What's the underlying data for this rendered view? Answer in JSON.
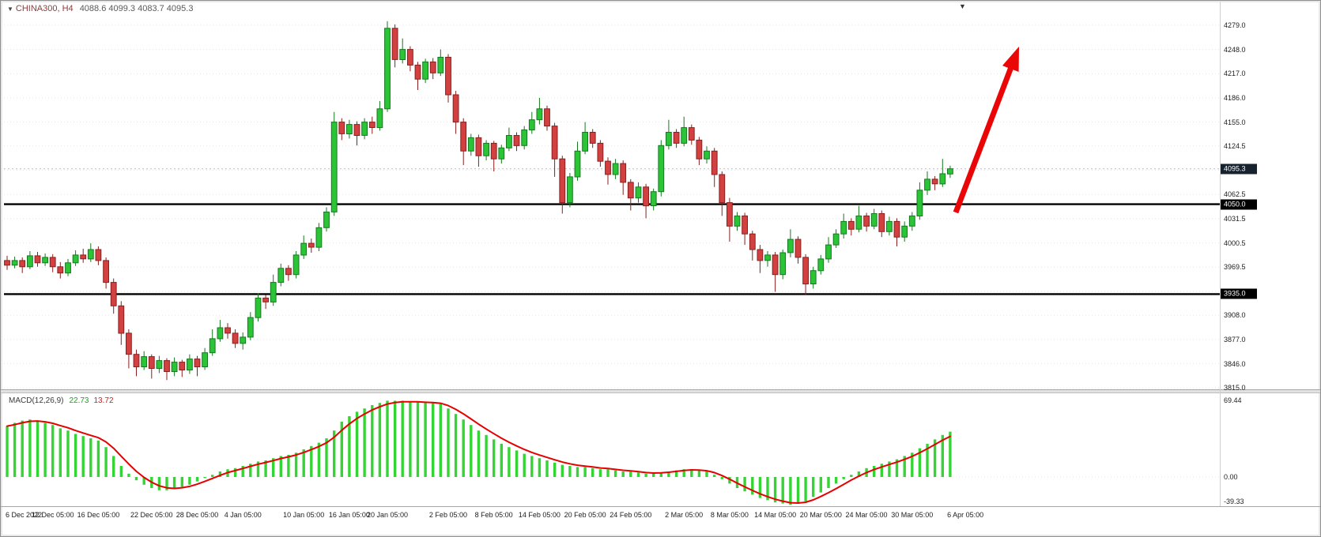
{
  "window": {
    "title_symbol": "CHINA300, H4",
    "title_ohlc": "4088.6 4099.3 4083.7 4095.3"
  },
  "colors": {
    "background": "#ffffff",
    "grid": "#dfe3ee",
    "candle_up_fill": "#2bc437",
    "candle_up_stroke": "#157a1f",
    "candle_down_fill": "#d24040",
    "candle_down_stroke": "#8a1f1f",
    "object_line": "#000000",
    "bid_line": "#b6bdd4",
    "bid_box": "#16222e",
    "hline_box": "#000000",
    "macd_histogram": "#35d435",
    "macd_signal": "#e60000",
    "arrow": "#ea0606"
  },
  "chart_data": {
    "type": "candlestick",
    "title": "CHINA300, H4",
    "symbol": "CHINA300",
    "timeframe": "H4",
    "last_ohlc": {
      "open": 4088.6,
      "high": 4099.3,
      "low": 4083.7,
      "close": 4095.3
    },
    "ylim_main": [
      3815.0,
      4292.0
    ],
    "grid": "horizontal-dotted",
    "price_axis": [
      {
        "value": 4279.0,
        "label": "4279.0",
        "show": true
      },
      {
        "value": 4248.0,
        "label": "4248.0",
        "show": true
      },
      {
        "value": 4217.0,
        "label": "4217.0",
        "show": true
      },
      {
        "value": 4186.0,
        "label": "4186.0",
        "show": true
      },
      {
        "value": 4155.0,
        "label": "4155.0",
        "show": true
      },
      {
        "value": 4124.5,
        "label": "4124.5",
        "show": true
      },
      {
        "value": 4093.5,
        "label": "4093.5",
        "show": false
      },
      {
        "value": 4062.5,
        "label": "4062.5",
        "show": true
      },
      {
        "value": 4031.5,
        "label": "4031.5",
        "show": true
      },
      {
        "value": 4000.5,
        "label": "4000.5",
        "show": true
      },
      {
        "value": 3969.5,
        "label": "3969.5",
        "show": true
      },
      {
        "value": 3938.5,
        "label": "3938.5",
        "show": false
      },
      {
        "value": 3908.0,
        "label": "3908.0",
        "show": true
      },
      {
        "value": 3877.0,
        "label": "3877.0",
        "show": true
      },
      {
        "value": 3846.0,
        "label": "3846.0",
        "show": true
      },
      {
        "value": 3815.0,
        "label": "3815.0",
        "show": true
      }
    ],
    "hlines": [
      {
        "price": 4050.0,
        "label": "4050.0"
      },
      {
        "price": 3935.0,
        "label": "3935.0"
      }
    ],
    "bid": {
      "price": 4095.3,
      "label": "4095.3"
    },
    "arrow": {
      "tail": [
        1204,
        250
      ],
      "tip": [
        1284,
        40
      ]
    },
    "time_ticks": [
      {
        "label": "6 Dec 2022",
        "i": 0
      },
      {
        "label": "12 Dec 05:00",
        "i": 6
      },
      {
        "label": "16 Dec 05:00",
        "i": 12
      },
      {
        "label": "22 Dec 05:00",
        "i": 19
      },
      {
        "label": "28 Dec 05:00",
        "i": 25
      },
      {
        "label": "4 Jan 05:00",
        "i": 31
      },
      {
        "label": "10 Jan 05:00",
        "i": 39
      },
      {
        "label": "16 Jan 05:00",
        "i": 45
      },
      {
        "label": "20 Jan 05:00",
        "i": 50
      },
      {
        "label": "2 Feb 05:00",
        "i": 58
      },
      {
        "label": "8 Feb 05:00",
        "i": 64
      },
      {
        "label": "14 Feb 05:00",
        "i": 70
      },
      {
        "label": "20 Feb 05:00",
        "i": 76
      },
      {
        "label": "24 Feb 05:00",
        "i": 82
      },
      {
        "label": "2 Mar 05:00",
        "i": 89
      },
      {
        "label": "8 Mar 05:00",
        "i": 95
      },
      {
        "label": "14 Mar 05:00",
        "i": 101
      },
      {
        "label": "20 Mar 05:00",
        "i": 107
      },
      {
        "label": "24 Mar 05:00",
        "i": 113
      },
      {
        "label": "30 Mar 05:00",
        "i": 119
      },
      {
        "label": "6 Apr 05:00",
        "i": 126
      }
    ],
    "ohlc": [
      [
        3978,
        3984,
        3966,
        3972
      ],
      [
        3972,
        3983,
        3968,
        3978
      ],
      [
        3978,
        3982,
        3962,
        3970
      ],
      [
        3970,
        3990,
        3967,
        3984
      ],
      [
        3984,
        3989,
        3970,
        3975
      ],
      [
        3975,
        3987,
        3971,
        3982
      ],
      [
        3982,
        3986,
        3963,
        3970
      ],
      [
        3970,
        3976,
        3955,
        3962
      ],
      [
        3962,
        3980,
        3958,
        3975
      ],
      [
        3975,
        3991,
        3971,
        3985
      ],
      [
        3985,
        3993,
        3975,
        3980
      ],
      [
        3980,
        4000,
        3976,
        3992
      ],
      [
        3992,
        3996,
        3972,
        3978
      ],
      [
        3978,
        3982,
        3942,
        3950
      ],
      [
        3950,
        3955,
        3910,
        3920
      ],
      [
        3920,
        3926,
        3870,
        3885
      ],
      [
        3885,
        3890,
        3840,
        3858
      ],
      [
        3858,
        3864,
        3830,
        3842
      ],
      [
        3842,
        3862,
        3838,
        3855
      ],
      [
        3855,
        3858,
        3827,
        3840
      ],
      [
        3840,
        3856,
        3834,
        3850
      ],
      [
        3850,
        3853,
        3825,
        3836
      ],
      [
        3836,
        3854,
        3830,
        3848
      ],
      [
        3848,
        3851,
        3829,
        3838
      ],
      [
        3838,
        3858,
        3833,
        3852
      ],
      [
        3852,
        3856,
        3830,
        3842
      ],
      [
        3842,
        3866,
        3838,
        3860
      ],
      [
        3860,
        3890,
        3856,
        3878
      ],
      [
        3878,
        3902,
        3874,
        3892
      ],
      [
        3892,
        3898,
        3878,
        3885
      ],
      [
        3885,
        3890,
        3866,
        3872
      ],
      [
        3872,
        3886,
        3864,
        3880
      ],
      [
        3880,
        3912,
        3876,
        3905
      ],
      [
        3905,
        3936,
        3900,
        3930
      ],
      [
        3930,
        3934,
        3916,
        3925
      ],
      [
        3925,
        3960,
        3920,
        3950
      ],
      [
        3950,
        3974,
        3945,
        3968
      ],
      [
        3968,
        3972,
        3952,
        3960
      ],
      [
        3960,
        3990,
        3955,
        3985
      ],
      [
        3985,
        4010,
        3980,
        4000
      ],
      [
        4000,
        4006,
        3988,
        3995
      ],
      [
        3995,
        4026,
        3990,
        4020
      ],
      [
        4020,
        4046,
        4015,
        4040
      ],
      [
        4040,
        4168,
        4035,
        4155
      ],
      [
        4155,
        4160,
        4132,
        4140
      ],
      [
        4140,
        4158,
        4134,
        4152
      ],
      [
        4152,
        4156,
        4125,
        4138
      ],
      [
        4138,
        4160,
        4133,
        4155
      ],
      [
        4155,
        4162,
        4140,
        4148
      ],
      [
        4148,
        4182,
        4144,
        4172
      ],
      [
        4172,
        4284,
        4168,
        4275
      ],
      [
        4275,
        4280,
        4225,
        4235
      ],
      [
        4235,
        4262,
        4230,
        4248
      ],
      [
        4248,
        4252,
        4220,
        4228
      ],
      [
        4228,
        4232,
        4196,
        4210
      ],
      [
        4210,
        4236,
        4205,
        4232
      ],
      [
        4232,
        4237,
        4210,
        4218
      ],
      [
        4218,
        4248,
        4214,
        4238
      ],
      [
        4238,
        4242,
        4180,
        4190
      ],
      [
        4190,
        4195,
        4140,
        4155
      ],
      [
        4155,
        4160,
        4100,
        4118
      ],
      [
        4118,
        4140,
        4112,
        4135
      ],
      [
        4135,
        4139,
        4098,
        4112
      ],
      [
        4112,
        4132,
        4106,
        4128
      ],
      [
        4128,
        4131,
        4092,
        4108
      ],
      [
        4108,
        4126,
        4102,
        4122
      ],
      [
        4122,
        4148,
        4118,
        4138
      ],
      [
        4138,
        4142,
        4118,
        4125
      ],
      [
        4125,
        4150,
        4120,
        4145
      ],
      [
        4145,
        4168,
        4140,
        4158
      ],
      [
        4158,
        4186,
        4152,
        4172
      ],
      [
        4172,
        4176,
        4144,
        4150
      ],
      [
        4150,
        4154,
        4085,
        4108
      ],
      [
        4108,
        4112,
        4038,
        4052
      ],
      [
        4052,
        4090,
        4046,
        4085
      ],
      [
        4085,
        4130,
        4080,
        4118
      ],
      [
        4118,
        4155,
        4114,
        4142
      ],
      [
        4142,
        4146,
        4122,
        4128
      ],
      [
        4128,
        4132,
        4098,
        4105
      ],
      [
        4105,
        4110,
        4075,
        4088
      ],
      [
        4088,
        4108,
        4082,
        4102
      ],
      [
        4102,
        4106,
        4062,
        4078
      ],
      [
        4078,
        4082,
        4042,
        4058
      ],
      [
        4058,
        4078,
        4052,
        4072
      ],
      [
        4072,
        4076,
        4032,
        4048
      ],
      [
        4048,
        4070,
        4042,
        4066
      ],
      [
        4066,
        4132,
        4060,
        4125
      ],
      [
        4125,
        4158,
        4120,
        4142
      ],
      [
        4142,
        4146,
        4122,
        4128
      ],
      [
        4128,
        4162,
        4124,
        4148
      ],
      [
        4148,
        4152,
        4126,
        4132
      ],
      [
        4132,
        4136,
        4100,
        4108
      ],
      [
        4108,
        4124,
        4102,
        4118
      ],
      [
        4118,
        4122,
        4072,
        4088
      ],
      [
        4088,
        4092,
        4035,
        4052
      ],
      [
        4052,
        4058,
        4002,
        4022
      ],
      [
        4022,
        4040,
        4016,
        4035
      ],
      [
        4035,
        4039,
        3998,
        4012
      ],
      [
        4012,
        4016,
        3978,
        3992
      ],
      [
        3992,
        3998,
        3962,
        3978
      ],
      [
        3978,
        3990,
        3970,
        3985
      ],
      [
        3985,
        3989,
        3938,
        3960
      ],
      [
        3960,
        3992,
        3954,
        3988
      ],
      [
        3988,
        4018,
        3982,
        4005
      ],
      [
        4005,
        4009,
        3974,
        3982
      ],
      [
        3982,
        3986,
        3934,
        3948
      ],
      [
        3948,
        3970,
        3942,
        3965
      ],
      [
        3965,
        3985,
        3960,
        3980
      ],
      [
        3980,
        4008,
        3975,
        3998
      ],
      [
        3998,
        4018,
        3994,
        4012
      ],
      [
        4012,
        4038,
        4006,
        4028
      ],
      [
        4028,
        4032,
        4010,
        4018
      ],
      [
        4018,
        4048,
        4014,
        4035
      ],
      [
        4035,
        4039,
        4015,
        4022
      ],
      [
        4022,
        4044,
        4018,
        4038
      ],
      [
        4038,
        4042,
        4008,
        4015
      ],
      [
        4015,
        4034,
        4010,
        4028
      ],
      [
        4028,
        4032,
        3996,
        4008
      ],
      [
        4008,
        4028,
        4002,
        4022
      ],
      [
        4022,
        4040,
        4016,
        4035
      ],
      [
        4035,
        4078,
        4030,
        4068
      ],
      [
        4068,
        4092,
        4062,
        4082
      ],
      [
        4082,
        4086,
        4068,
        4076
      ],
      [
        4076,
        4108,
        4072,
        4089
      ],
      [
        4088.6,
        4099.3,
        4083.7,
        4095.3
      ]
    ],
    "macd": {
      "name_label": "MACD(12,26,9)",
      "main_value": "22.73",
      "signal_value": "13.72",
      "axis_labels": [
        "69.44",
        "0.00",
        "-39.33"
      ],
      "histogram": [
        46,
        49,
        51,
        52,
        51,
        49,
        47,
        44,
        42,
        39,
        37,
        35,
        33,
        27,
        19,
        10,
        3,
        -3,
        -7,
        -10,
        -12,
        -12,
        -11,
        -9,
        -7,
        -4,
        -1,
        2,
        5,
        7,
        8,
        10,
        12,
        14,
        15,
        17,
        19,
        20,
        22,
        25,
        28,
        31,
        35,
        42,
        50,
        55,
        59,
        62,
        65,
        67,
        69,
        69,
        69,
        68,
        68,
        67,
        67,
        66,
        62,
        57,
        52,
        47,
        42,
        38,
        34,
        30,
        27,
        24,
        21,
        19,
        17,
        15,
        13,
        11,
        10,
        9,
        9,
        8,
        7,
        7,
        6,
        5,
        5,
        4,
        3,
        3,
        4,
        5,
        6,
        7,
        7,
        6,
        5,
        2,
        -2,
        -6,
        -10,
        -13,
        -16,
        -19,
        -21,
        -23,
        -24,
        -25,
        -24,
        -22,
        -18,
        -14,
        -10,
        -6,
        -2,
        2,
        5,
        8,
        10,
        12,
        14,
        16,
        19,
        22,
        26,
        30,
        34,
        38,
        41
      ]
    }
  }
}
